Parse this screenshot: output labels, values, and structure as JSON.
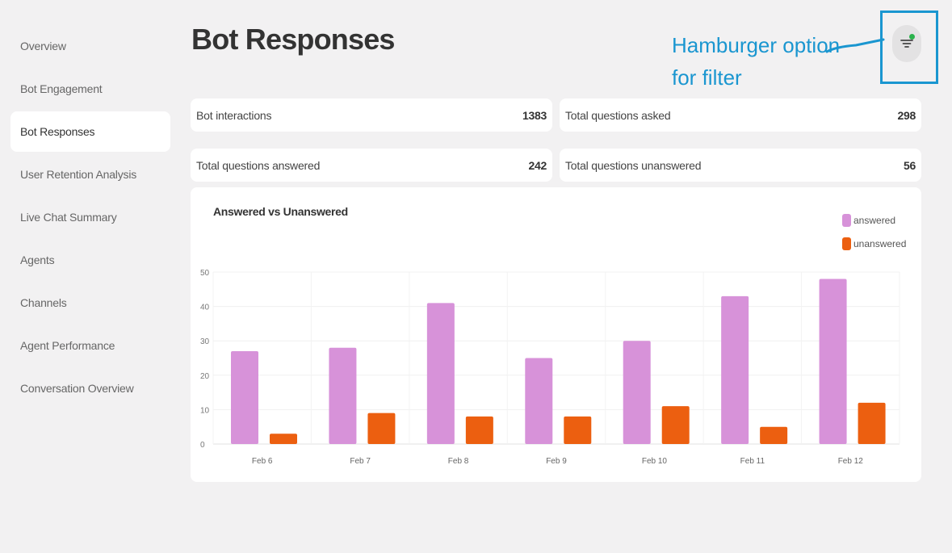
{
  "sidebar": {
    "items": [
      {
        "label": "Overview",
        "active": false
      },
      {
        "label": "Bot Engagement",
        "active": false
      },
      {
        "label": "Bot Responses",
        "active": true
      },
      {
        "label": "User Retention Analysis",
        "active": false
      },
      {
        "label": "Live Chat Summary",
        "active": false
      },
      {
        "label": "Agents",
        "active": false
      },
      {
        "label": "Channels",
        "active": false
      },
      {
        "label": "Agent Performance",
        "active": false
      },
      {
        "label": "Conversation Overview",
        "active": false
      }
    ]
  },
  "header": {
    "title": "Bot Responses",
    "annotation_line1": "Hamburger option",
    "annotation_line2": "for filter",
    "filter_icon": "filter-icon"
  },
  "stats": [
    {
      "label": "Bot interactions",
      "value": "1383"
    },
    {
      "label": "Total questions asked",
      "value": "298"
    },
    {
      "label": "Total questions answered",
      "value": "242"
    },
    {
      "label": "Total questions unanswered",
      "value": "56"
    }
  ],
  "colors": {
    "answered": "#d792d9",
    "unanswered": "#ec5f10",
    "annotation": "#1a96d0",
    "filter_dot": "#2bb24c"
  },
  "chart_data": {
    "type": "bar",
    "title": "Answered vs Unanswered",
    "categories": [
      "Feb 6",
      "Feb 7",
      "Feb 8",
      "Feb 9",
      "Feb 10",
      "Feb 11",
      "Feb 12"
    ],
    "series": [
      {
        "name": "answered",
        "values": [
          27,
          28,
          41,
          25,
          30,
          43,
          48
        ]
      },
      {
        "name": "unanswered",
        "values": [
          3,
          9,
          8,
          8,
          11,
          5,
          12
        ]
      }
    ],
    "ylim": [
      0,
      50
    ],
    "yticks": [
      "0",
      "10",
      "20",
      "30",
      "40",
      "50"
    ],
    "grid": true,
    "legend_position": "top-right"
  }
}
